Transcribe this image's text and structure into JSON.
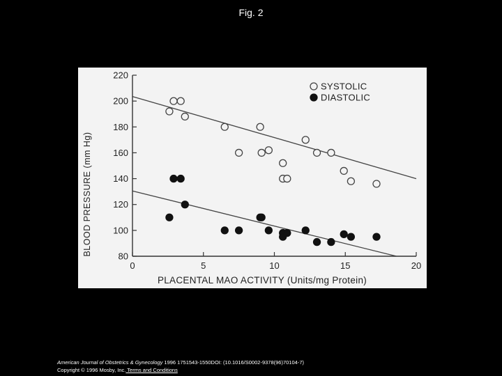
{
  "slide": {
    "title": "Fig. 2"
  },
  "citation": {
    "journal": "American Journal of Obstetrics & Gynecology",
    "ref": " 1996 1751543-1550DOI: (10.1016/S0002-9378(96)70104-7)",
    "copyright": "Copyright © 1996 Mosby, Inc.",
    "terms": " Terms and Conditions"
  },
  "chart_data": {
    "type": "scatter",
    "title": "",
    "xlabel": "PLACENTAL MAO ACTIVITY (Units/mg Protein)",
    "ylabel": "BLOOD PRESSURE (mm Hg)",
    "xlim": [
      0,
      20
    ],
    "ylim": [
      80,
      220
    ],
    "xticks": [
      "0",
      "5",
      "10",
      "15",
      "20"
    ],
    "yticks": [
      "80",
      "100",
      "120",
      "140",
      "160",
      "180",
      "200",
      "220"
    ],
    "legend_position": "top-right",
    "grid": false,
    "series": [
      {
        "name": "SYSTOLIC",
        "marker": "open-circle",
        "points": [
          [
            2.6,
            192
          ],
          [
            2.9,
            200
          ],
          [
            3.4,
            200
          ],
          [
            3.7,
            188
          ],
          [
            6.5,
            180
          ],
          [
            7.5,
            160
          ],
          [
            9.0,
            180
          ],
          [
            9.1,
            160
          ],
          [
            9.6,
            162
          ],
          [
            10.6,
            152
          ],
          [
            10.6,
            140
          ],
          [
            10.9,
            140
          ],
          [
            12.2,
            170
          ],
          [
            13.0,
            160
          ],
          [
            14.0,
            160
          ],
          [
            14.9,
            146
          ],
          [
            15.4,
            138
          ],
          [
            17.2,
            136
          ]
        ],
        "fit": [
          [
            0,
            203.5
          ],
          [
            20,
            140
          ]
        ]
      },
      {
        "name": "DIASTOLIC",
        "marker": "filled-circle",
        "points": [
          [
            2.6,
            110
          ],
          [
            2.9,
            140
          ],
          [
            3.4,
            140
          ],
          [
            3.7,
            120
          ],
          [
            6.5,
            100
          ],
          [
            7.5,
            100
          ],
          [
            9.0,
            110
          ],
          [
            9.1,
            110
          ],
          [
            9.6,
            100
          ],
          [
            10.6,
            98
          ],
          [
            10.6,
            95
          ],
          [
            10.9,
            98
          ],
          [
            12.2,
            100
          ],
          [
            13.0,
            91
          ],
          [
            14.0,
            91
          ],
          [
            14.9,
            97
          ],
          [
            15.4,
            95
          ],
          [
            17.2,
            95
          ]
        ],
        "fit": [
          [
            0,
            130.5
          ],
          [
            18.6,
            80
          ]
        ]
      }
    ]
  }
}
